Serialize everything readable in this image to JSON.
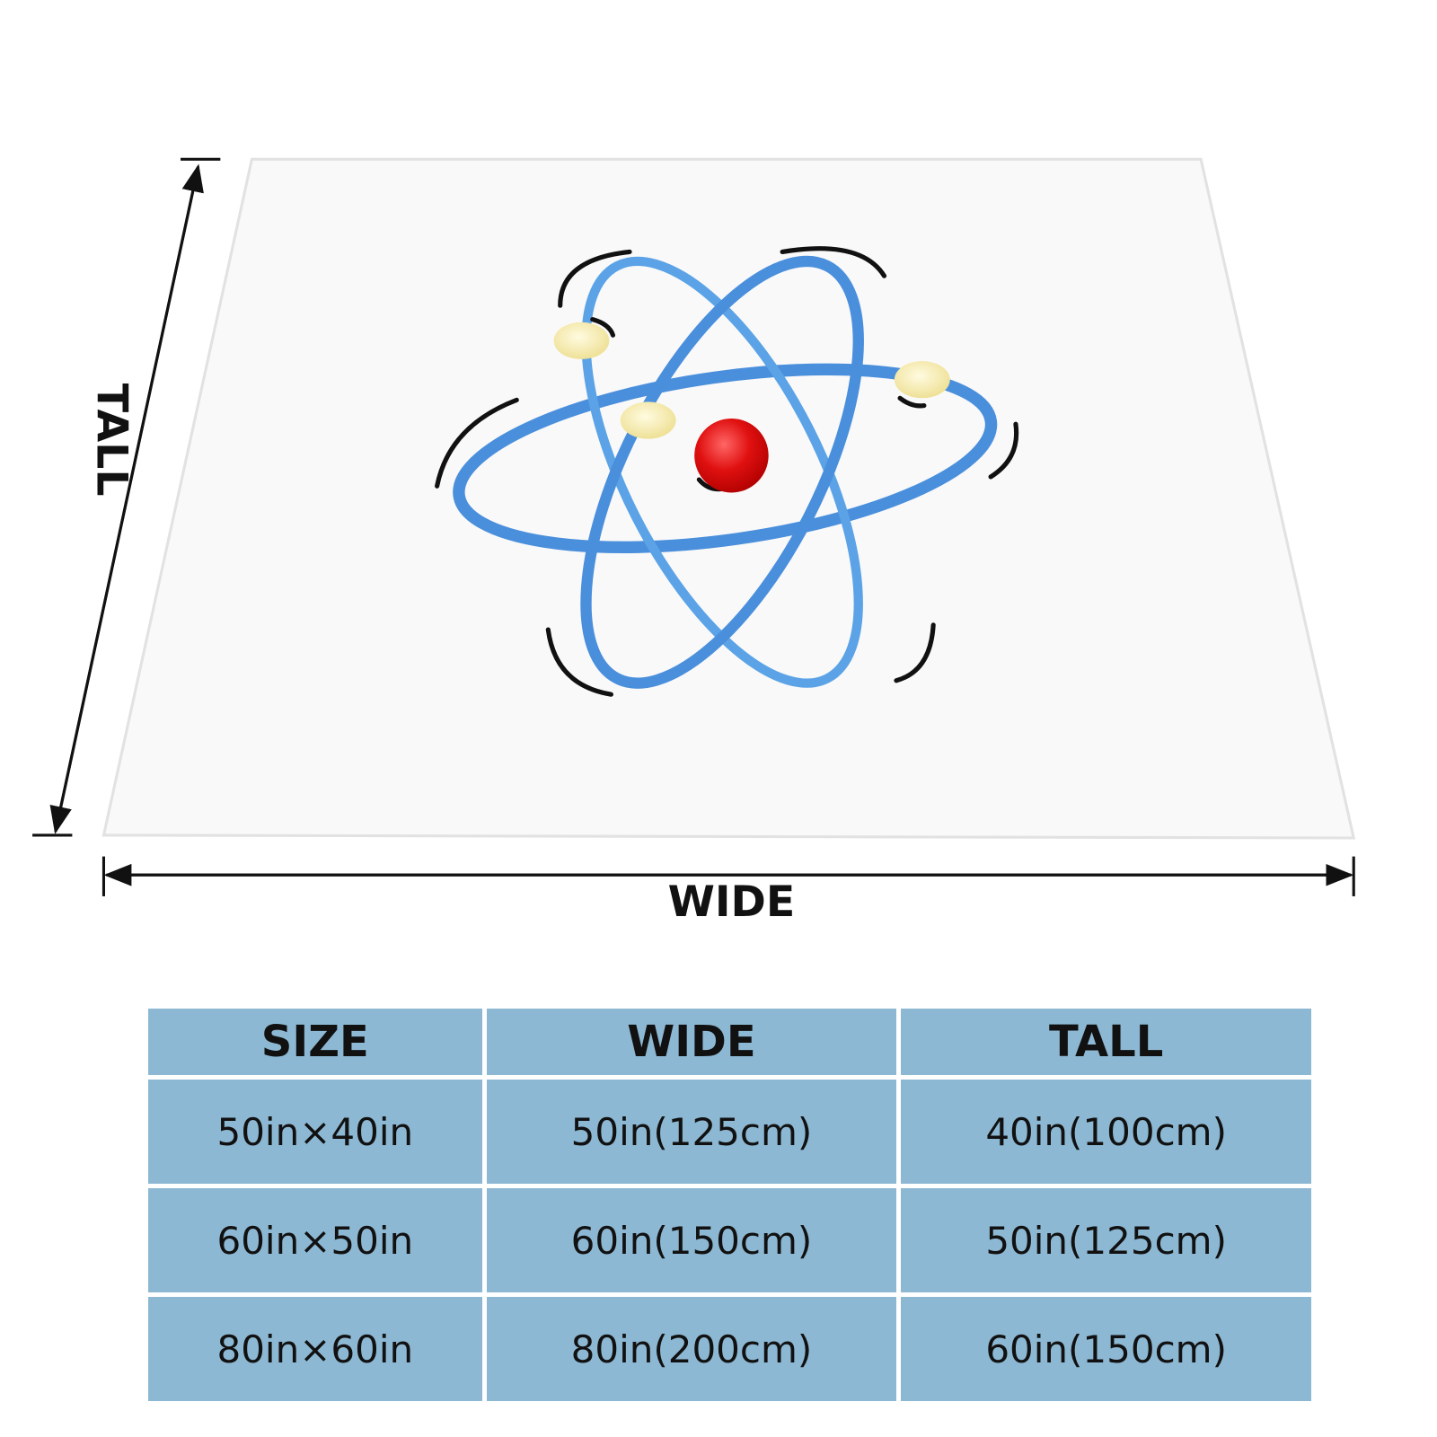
{
  "diagram": {
    "tall_label": "TALL",
    "wide_label": "WIDE"
  },
  "table": {
    "header": [
      "SIZE",
      "WIDE",
      "TALL"
    ],
    "rows": [
      [
        "50in×40in",
        "50in(125cm)",
        "40in(100cm)"
      ],
      [
        "60in×50in",
        "60in(150cm)",
        "50in(125cm)"
      ],
      [
        "80in×60in",
        "80in(200cm)",
        "60in(150cm)"
      ]
    ]
  }
}
